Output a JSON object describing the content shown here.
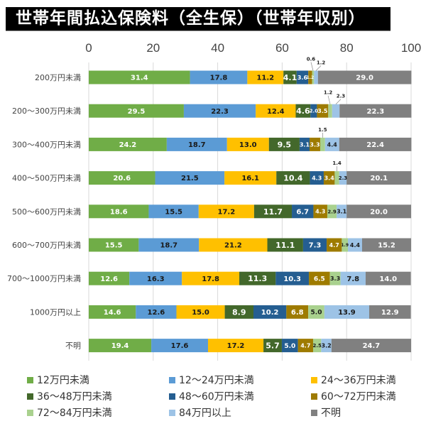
{
  "title": "世帯年間払込保険料（全生保）（世帯年収別）",
  "chart_data": {
    "type": "bar",
    "orientation": "horizontal",
    "stacked": true,
    "title": "世帯年間払込保険料（全生保）（世帯年収別）",
    "xlabel": "",
    "ylabel": "",
    "xlim": [
      0,
      100
    ],
    "x_ticks": [
      "0",
      "20",
      "40",
      "60",
      "80",
      "100"
    ],
    "grid": true,
    "legend_position": "bottom",
    "categories": [
      "200万円未満",
      "200〜300万円未満",
      "300〜400万円未満",
      "400〜500万円未満",
      "500〜600万円未満",
      "600〜700万円未満",
      "700〜1000万円未満",
      "1000万円以上",
      "不明"
    ],
    "series": [
      {
        "name": "12万円未満",
        "color": "#70AD47",
        "label_color": "#ffffff",
        "values": [
          31.4,
          29.5,
          24.2,
          20.6,
          18.6,
          15.5,
          12.6,
          14.6,
          19.4
        ]
      },
      {
        "name": "12〜24万円未満",
        "color": "#5B9BD5",
        "label_color": "#1a1a1a",
        "values": [
          17.8,
          22.3,
          18.7,
          21.5,
          15.5,
          18.7,
          16.3,
          12.6,
          17.6
        ]
      },
      {
        "name": "24〜36万円未満",
        "color": "#FFC000",
        "label_color": "#1a1a1a",
        "values": [
          11.2,
          12.4,
          13.0,
          16.1,
          17.2,
          21.2,
          17.8,
          15.0,
          17.2
        ]
      },
      {
        "name": "36〜48万円未満",
        "color": "#43682B",
        "label_color": "#ffffff",
        "values": [
          4.1,
          4.6,
          9.5,
          10.4,
          11.7,
          11.1,
          11.3,
          8.9,
          5.7
        ]
      },
      {
        "name": "48〜60万円未満",
        "color": "#255E91",
        "label_color": "#ffffff",
        "values": [
          3.6,
          2.0,
          3.1,
          4.3,
          6.7,
          7.3,
          10.3,
          10.2,
          5.0
        ]
      },
      {
        "name": "60〜72万円未満",
        "color": "#9E7B00",
        "label_color": "#ffffff",
        "values": [
          1.2,
          3.5,
          3.3,
          3.4,
          4.3,
          4.7,
          6.5,
          6.8,
          4.7
        ]
      },
      {
        "name": "72〜84万円未満",
        "color": "#A9D18E",
        "label_color": "#1a1a1a",
        "values": [
          0.6,
          1.2,
          1.5,
          1.4,
          2.9,
          1.9,
          3.3,
          5.0,
          2.5
        ]
      },
      {
        "name": "84万円以上",
        "color": "#9DC3E6",
        "label_color": "#1a1a1a",
        "values": [
          1.2,
          2.3,
          4.4,
          2.3,
          3.1,
          4.4,
          7.8,
          13.9,
          3.2
        ]
      },
      {
        "name": "不明",
        "color": "#808080",
        "label_color": "#ffffff",
        "values": [
          29.0,
          22.3,
          22.4,
          20.1,
          20.0,
          15.2,
          14.0,
          12.9,
          24.7
        ]
      }
    ],
    "value_labels": [
      [
        "31.4",
        "17.8",
        "11.2",
        "4.1",
        "3.6",
        "1.2",
        "0.6",
        "1.2",
        "29.0"
      ],
      [
        "29.5",
        "22.3",
        "12.4",
        "4.6",
        "2.0",
        "3.5",
        "1.2",
        "2.3",
        "22.3"
      ],
      [
        "24.2",
        "18.7",
        "13.0",
        "9.5",
        "3.1",
        "3.3",
        "1.5",
        "4.4",
        "22.4"
      ],
      [
        "20.6",
        "21.5",
        "16.1",
        "10.4",
        "4.3",
        "3.4",
        "1.4",
        "2.3",
        "20.1"
      ],
      [
        "18.6",
        "15.5",
        "17.2",
        "11.7",
        "6.7",
        "4.3",
        "2.9",
        "3.1",
        "20.0"
      ],
      [
        "15.5",
        "18.7",
        "21.2",
        "11.1",
        "7.3",
        "4.7",
        "1.9",
        "4.4",
        "15.2"
      ],
      [
        "12.6",
        "16.3",
        "17.8",
        "11.3",
        "10.3",
        "6.5",
        "3.3",
        "7.8",
        "14.0"
      ],
      [
        "14.6",
        "12.6",
        "15.0",
        "8.9",
        "10.2",
        "6.8",
        "5.0",
        "13.9",
        "12.9"
      ],
      [
        "19.4",
        "17.6",
        "17.2",
        "5.7",
        "5.0",
        "4.7",
        "2.5",
        "3.2",
        "24.7"
      ]
    ],
    "callout_labels": [
      [
        6,
        7
      ],
      [
        6,
        7
      ],
      [
        6
      ],
      [
        6
      ],
      [],
      [],
      [],
      [],
      []
    ]
  }
}
